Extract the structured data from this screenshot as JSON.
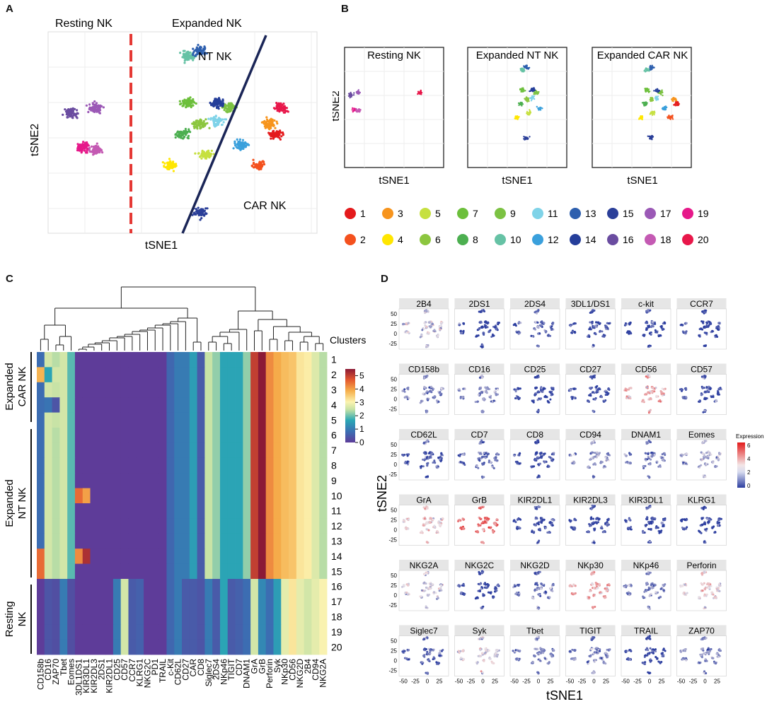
{
  "panels": {
    "A": {
      "letter": "A",
      "left_label": "Resting NK",
      "right_label": "Expanded NK",
      "nt_label": "NT NK",
      "car_label": "CAR NK",
      "xlabel": "tSNE1",
      "ylabel": "tSNE2"
    },
    "B": {
      "letter": "B",
      "titles": [
        "Resting NK",
        "Expanded NT NK",
        "Expanded CAR NK"
      ],
      "xlabel": "tSNE1",
      "ylabel": "tSNE2",
      "legend": [
        {
          "id": "1",
          "color": "#e41a1c"
        },
        {
          "id": "2",
          "color": "#f4511e"
        },
        {
          "id": "3",
          "color": "#f7941d"
        },
        {
          "id": "4",
          "color": "#ffe600"
        },
        {
          "id": "5",
          "color": "#c6e040"
        },
        {
          "id": "6",
          "color": "#8cc63f"
        },
        {
          "id": "7",
          "color": "#6cbf3b"
        },
        {
          "id": "8",
          "color": "#4caf50"
        },
        {
          "id": "9",
          "color": "#7cc243"
        },
        {
          "id": "10",
          "color": "#66c2a5"
        },
        {
          "id": "11",
          "color": "#7fd3e8"
        },
        {
          "id": "12",
          "color": "#3aa0dc"
        },
        {
          "id": "13",
          "color": "#2d5fae"
        },
        {
          "id": "14",
          "color": "#253e9a"
        },
        {
          "id": "15",
          "color": "#2b3f99"
        },
        {
          "id": "16",
          "color": "#6a4ca0"
        },
        {
          "id": "17",
          "color": "#9b59b6"
        },
        {
          "id": "18",
          "color": "#c45ab3"
        },
        {
          "id": "19",
          "color": "#e6198a"
        },
        {
          "id": "20",
          "color": "#e8174a"
        }
      ]
    },
    "C": {
      "letter": "C",
      "clusters_title": "Clusters",
      "colorbar_ticks": [
        "5",
        "4",
        "3",
        "2",
        "1",
        "0"
      ],
      "group_labels": [
        {
          "line1": "Expanded",
          "line2": "CAR NK"
        },
        {
          "line1": "Expanded",
          "line2": "NT NK"
        },
        {
          "line1": "Resting",
          "line2": "NK"
        }
      ]
    },
    "D": {
      "letter": "D",
      "xlabel": "tSNE1",
      "ylabel": "tSNE2",
      "legend_title": "Expression",
      "legend_ticks": [
        "6",
        "4",
        "2",
        "0"
      ],
      "y_ticks": [
        "50",
        "25",
        "0",
        "-25"
      ],
      "x_ticks": [
        "-50",
        "-25",
        "0",
        "25"
      ]
    }
  },
  "chart_data": [
    {
      "type": "scatter",
      "panel": "A",
      "title": "",
      "xlabel": "tSNE1",
      "ylabel": "tSNE2",
      "annotations": [
        "Resting NK",
        "Expanded NK",
        "NT NK",
        "CAR NK"
      ],
      "clusters": [
        {
          "id": 16,
          "cx": -38,
          "cy": 8
        },
        {
          "id": 17,
          "cx": -30,
          "cy": 10
        },
        {
          "id": 19,
          "cx": -34,
          "cy": -5
        },
        {
          "id": 18,
          "cx": -30,
          "cy": -6
        },
        {
          "id": 10,
          "cx": 2,
          "cy": 30
        },
        {
          "id": 13,
          "cx": 6,
          "cy": 32
        },
        {
          "id": 7,
          "cx": 2,
          "cy": 12
        },
        {
          "id": 8,
          "cx": 0,
          "cy": 0
        },
        {
          "id": 9,
          "cx": 16,
          "cy": 10
        },
        {
          "id": 6,
          "cx": 6,
          "cy": 4
        },
        {
          "id": 11,
          "cx": 12,
          "cy": 5
        },
        {
          "id": 12,
          "cx": 20,
          "cy": -4
        },
        {
          "id": 3,
          "cx": 30,
          "cy": 4
        },
        {
          "id": 1,
          "cx": 32,
          "cy": 0
        },
        {
          "id": 2,
          "cx": 26,
          "cy": -12
        },
        {
          "id": 4,
          "cx": -4,
          "cy": -12
        },
        {
          "id": 5,
          "cx": 8,
          "cy": -8
        },
        {
          "id": 15,
          "cx": 6,
          "cy": -30
        },
        {
          "id": 14,
          "cx": 12,
          "cy": 12
        },
        {
          "id": 20,
          "cx": 34,
          "cy": 10
        }
      ]
    },
    {
      "type": "scatter",
      "panel": "B",
      "subplots": [
        "Resting NK",
        "Expanded NT NK",
        "Expanded CAR NK"
      ],
      "xlabel": "tSNE1",
      "ylabel": "tSNE2",
      "legend": [
        "1",
        "2",
        "3",
        "4",
        "5",
        "6",
        "7",
        "8",
        "9",
        "10",
        "11",
        "12",
        "13",
        "14",
        "15",
        "16",
        "17",
        "18",
        "19",
        "20"
      ]
    },
    {
      "type": "heatmap",
      "panel": "C",
      "columns": [
        "CD158b",
        "CD16",
        "ZAP70",
        "Tbet",
        "Eomes",
        "3DL1DS1",
        "KIR3DL1",
        "KIR2DL3",
        "2DS1",
        "KIR2DL1",
        "CD25",
        "CD57",
        "CCR7",
        "KLRG1",
        "NKG2C",
        "PD1",
        "TRAIL",
        "c-Kit",
        "CD62L",
        "CD27",
        "CAR",
        "CD8",
        "Siglec7",
        "2DS4",
        "NKp46",
        "TIGIT",
        "CD7",
        "DNAM1",
        "GrA",
        "GrB",
        "Perforin",
        "Syk",
        "NKp30",
        "CD56",
        "NKG2D",
        "2B4",
        "CD94",
        "NKG2A"
      ],
      "rows": [
        "1",
        "2",
        "3",
        "4",
        "5",
        "6",
        "7",
        "8",
        "9",
        "10",
        "11",
        "12",
        "13",
        "14",
        "15",
        "16",
        "17",
        "18",
        "19",
        "20"
      ],
      "row_groups": [
        {
          "name": "Expanded CAR NK",
          "rows": [
            "1",
            "2",
            "3",
            "4",
            "5"
          ]
        },
        {
          "name": "Expanded NT NK",
          "rows": [
            "6",
            "7",
            "8",
            "9",
            "10",
            "11",
            "12",
            "13",
            "14",
            "15"
          ]
        },
        {
          "name": "Resting NK",
          "rows": [
            "16",
            "17",
            "18",
            "19",
            "20"
          ]
        }
      ],
      "scale": [
        0,
        5
      ],
      "values": [
        [
          0.8,
          2.6,
          2.4,
          2.6,
          1.9,
          0,
          0,
          0,
          0,
          0,
          0,
          0,
          0,
          0,
          0,
          0,
          0,
          0.7,
          1,
          1,
          1.5,
          0.5,
          2.5,
          2.2,
          1.6,
          1.6,
          1.6,
          2.2,
          5,
          5.5,
          4.2,
          3.9,
          3.7,
          3.6,
          3.2,
          3.1,
          2.7,
          2.4
        ],
        [
          3.8,
          1.6,
          2.6,
          2.6,
          1.9,
          0,
          0,
          0,
          0,
          0,
          0,
          0,
          0,
          0,
          0,
          0,
          0,
          0.7,
          1,
          1,
          1.5,
          0.5,
          2.5,
          2.2,
          1.6,
          1.6,
          1.6,
          2.2,
          5,
          5.5,
          4.2,
          3.9,
          3.7,
          3.6,
          3.2,
          3.1,
          2.7,
          2.4
        ],
        [
          0.8,
          2.6,
          2.5,
          2.6,
          1.9,
          0,
          0,
          0,
          0,
          0,
          0,
          0,
          0,
          0,
          0,
          0,
          0,
          0.7,
          1,
          1,
          1.5,
          0.5,
          2.5,
          2.2,
          1.6,
          1.6,
          1.6,
          2.2,
          5,
          5.5,
          4.2,
          3.9,
          3.7,
          3.6,
          3.2,
          3.1,
          2.7,
          2.4
        ],
        [
          0.8,
          0.9,
          0.4,
          2.6,
          1.9,
          0,
          0,
          0,
          0,
          0,
          0,
          0,
          0,
          0,
          0,
          0,
          0,
          0.7,
          1,
          1,
          1.5,
          0.5,
          2.5,
          2.2,
          1.6,
          1.6,
          1.6,
          2.2,
          5,
          5.5,
          4.2,
          3.9,
          3.7,
          3.6,
          3.2,
          3.1,
          2.7,
          2.4
        ],
        [
          0.8,
          2.6,
          2.5,
          2.6,
          1.9,
          0,
          0,
          0,
          0,
          0,
          0,
          0,
          0,
          0,
          0,
          0,
          0,
          0.7,
          1,
          1,
          1.5,
          0.5,
          2.5,
          2.2,
          1.6,
          1.6,
          1.6,
          2.2,
          5,
          5.5,
          4.2,
          3.9,
          3.7,
          3.6,
          3.2,
          3.1,
          2.7,
          2.4
        ],
        [
          0.8,
          2.6,
          2.4,
          2.6,
          1.9,
          0,
          0,
          0,
          0,
          0,
          0,
          0,
          0,
          0,
          0,
          0,
          0,
          0.7,
          1,
          1,
          1.5,
          0.5,
          2.5,
          2.2,
          1.6,
          1.6,
          1.6,
          2.2,
          5,
          5.5,
          4.2,
          3.9,
          3.7,
          3.6,
          3.2,
          3.1,
          2.7,
          2.4
        ],
        [
          0.8,
          2.6,
          2.4,
          2.6,
          1.9,
          0,
          0,
          0,
          0,
          0,
          0,
          0,
          0,
          0,
          0,
          0,
          0,
          0.7,
          1,
          1,
          1.5,
          0.5,
          2.5,
          2.2,
          1.6,
          1.6,
          1.6,
          2.2,
          5,
          5.5,
          4.2,
          3.9,
          3.7,
          3.6,
          3.2,
          3.1,
          2.7,
          2.4
        ],
        [
          0.8,
          2.6,
          2.4,
          2.6,
          1.9,
          0,
          0,
          0,
          0,
          0,
          0,
          0,
          0,
          0,
          0,
          0,
          0,
          0.7,
          1,
          1,
          1.5,
          0.5,
          2.5,
          2.2,
          1.6,
          1.6,
          1.6,
          2.2,
          5,
          5.5,
          4.2,
          3.9,
          3.7,
          3.6,
          3.2,
          3.1,
          2.7,
          2.4
        ],
        [
          0.8,
          2.6,
          2.4,
          2.6,
          1.9,
          0,
          0,
          0,
          0,
          0,
          0,
          0,
          0,
          0,
          0,
          0,
          0,
          0.7,
          1,
          1,
          1.5,
          0.5,
          2.5,
          2.2,
          1.6,
          1.6,
          1.6,
          2.2,
          5,
          5.5,
          4.2,
          3.9,
          3.7,
          3.6,
          3.2,
          3.1,
          2.7,
          2.4
        ],
        [
          0.8,
          2.6,
          2.4,
          2.6,
          1.9,
          4.5,
          4,
          0,
          0,
          0,
          0,
          0,
          0,
          0,
          0,
          0,
          0,
          0.7,
          1,
          1,
          1.5,
          0.5,
          2.5,
          2.2,
          1.6,
          1.6,
          1.6,
          2.2,
          5,
          5.5,
          4.2,
          3.9,
          3.7,
          3.6,
          3.2,
          3.1,
          2.7,
          2.4
        ],
        [
          0.8,
          2.6,
          2.4,
          2.6,
          1.9,
          0,
          0,
          0,
          0,
          0,
          0,
          0,
          0,
          0,
          0,
          0,
          0,
          0.7,
          1,
          1,
          1.5,
          0.5,
          2.5,
          2.2,
          1.6,
          1.6,
          1.6,
          2.2,
          5,
          5.5,
          4.2,
          3.9,
          3.7,
          3.6,
          3.2,
          3.1,
          2.7,
          2.4
        ],
        [
          0.8,
          2.6,
          2.4,
          2.6,
          1.9,
          0,
          0,
          0,
          0,
          0,
          0,
          0,
          0,
          0,
          0,
          0,
          0,
          0.7,
          1,
          1,
          1.5,
          0.5,
          2.5,
          2.2,
          1.6,
          1.6,
          1.6,
          2.2,
          5,
          5.5,
          4.2,
          3.9,
          3.7,
          3.6,
          3.2,
          3.1,
          2.7,
          2.4
        ],
        [
          0.8,
          2.6,
          2.4,
          2.6,
          1.9,
          0,
          0,
          0,
          0,
          0,
          0,
          0,
          0,
          0,
          0,
          0,
          0,
          0.7,
          1,
          1,
          1.5,
          0.5,
          2.5,
          2.2,
          1.6,
          1.6,
          1.6,
          2.2,
          5,
          5.5,
          4.2,
          3.9,
          3.7,
          3.6,
          3.2,
          3.1,
          2.7,
          2.4
        ],
        [
          4.5,
          2.6,
          2.4,
          2.6,
          1.9,
          4.2,
          5.2,
          0,
          0,
          0,
          0,
          0,
          0,
          0,
          0,
          0,
          0,
          0.7,
          1,
          1,
          1.5,
          0.5,
          2.5,
          2.2,
          1.6,
          1.6,
          1.6,
          2.2,
          5,
          5.5,
          4.2,
          3.9,
          3.7,
          3.6,
          3.2,
          3.1,
          2.7,
          2.4
        ],
        [
          4.5,
          2.6,
          2.4,
          2.6,
          1.9,
          0,
          0,
          0,
          0,
          0,
          0,
          0,
          0,
          0,
          0,
          0,
          0,
          0.7,
          1,
          1,
          1.5,
          0.5,
          2.5,
          2.2,
          1.6,
          1.6,
          1.6,
          2.2,
          5,
          5.5,
          4.2,
          3.9,
          3.7,
          3.6,
          3.2,
          3.1,
          2.7,
          2.4
        ],
        [
          0,
          0.4,
          0.3,
          1,
          0.3,
          0,
          0,
          0,
          0,
          0,
          1,
          2.6,
          0.5,
          0.6,
          0,
          0,
          0,
          0.7,
          1,
          0.5,
          0.5,
          0.4,
          1,
          0.5,
          1.6,
          0.5,
          0.6,
          0.8,
          2.6,
          1.2,
          0.8,
          1.5,
          2.8,
          3.2,
          2.8,
          2.6,
          2.8,
          3
        ],
        [
          0,
          0.4,
          0.3,
          1,
          0.3,
          0,
          0,
          0,
          0,
          0,
          1,
          2.6,
          0.5,
          0.6,
          0,
          0,
          0,
          0.7,
          1,
          0.5,
          0.5,
          0.4,
          1,
          0.5,
          1.6,
          0.5,
          0.6,
          0.8,
          2.6,
          1.2,
          0.8,
          1.5,
          2.8,
          3.2,
          2.8,
          2.6,
          2.8,
          3
        ],
        [
          0,
          0.4,
          0.3,
          1,
          0.3,
          0,
          0,
          0,
          0,
          0,
          1,
          2.6,
          0.5,
          0.6,
          0,
          0,
          0,
          0.7,
          1,
          0.5,
          0.5,
          0.4,
          1,
          0.5,
          1.6,
          0.5,
          0.6,
          0.8,
          2.6,
          1.2,
          0.8,
          1.5,
          2.8,
          3.2,
          2.8,
          2.6,
          2.8,
          3
        ],
        [
          0,
          0.4,
          0.3,
          1,
          0.3,
          0,
          0,
          0,
          0,
          0,
          1,
          2.6,
          0.5,
          0.6,
          0,
          0,
          0,
          0.7,
          1,
          0.5,
          0.5,
          0.4,
          1,
          0.5,
          1.6,
          0.5,
          0.6,
          0.8,
          2.6,
          1.2,
          0.8,
          1.5,
          2.8,
          3.2,
          2.8,
          2.6,
          2.8,
          3
        ],
        [
          0,
          0.4,
          0.3,
          1,
          0.3,
          0,
          0,
          0,
          0,
          0,
          1,
          2.6,
          0.5,
          0.6,
          0,
          0,
          0,
          0.7,
          1,
          0.5,
          0.5,
          0.4,
          1,
          0.5,
          1.6,
          0.5,
          0.6,
          0.8,
          2.6,
          1.2,
          0.8,
          1.5,
          2.8,
          3.2,
          2.8,
          2.6,
          2.8,
          3
        ]
      ]
    },
    {
      "type": "scatter",
      "panel": "D",
      "xlabel": "tSNE1",
      "ylabel": "tSNE2",
      "legend_title": "Expression",
      "color_range": [
        0,
        6
      ],
      "x_ticks": [
        -50,
        -25,
        0,
        25
      ],
      "y_ticks": [
        50,
        25,
        0,
        -25
      ],
      "markers": [
        "2B4",
        "2DS1",
        "2DS4",
        "3DL1/DS1",
        "c-kit",
        "CCR7",
        "CD158b",
        "CD16",
        "CD25",
        "CD27",
        "CD56",
        "CD57",
        "CD62L",
        "CD7",
        "CD8",
        "CD94",
        "DNAM1",
        "Eomes",
        "GrA",
        "GrB",
        "KIR2DL1",
        "KIR2DL3",
        "KIR3DL1",
        "KLRG1",
        "NKG2A",
        "NKG2C",
        "NKG2D",
        "NKp30",
        "NKp46",
        "Perforin",
        "Siglec7",
        "Syk",
        "Tbet",
        "TIGIT",
        "TRAIL",
        "ZAP70"
      ],
      "mean_expression": [
        2.2,
        0.2,
        0.8,
        0.3,
        0.2,
        0.1,
        1.2,
        1.4,
        0.2,
        0.3,
        3.5,
        0.4,
        0.6,
        1.0,
        0.4,
        1.6,
        1.0,
        1.8,
        3.0,
        4.4,
        0.4,
        0.3,
        0.3,
        0.2,
        2.4,
        0.2,
        1.0,
        3.6,
        1.2,
        2.8,
        0.8,
        2.5,
        1.2,
        1.2,
        0.2,
        1.4
      ]
    }
  ]
}
